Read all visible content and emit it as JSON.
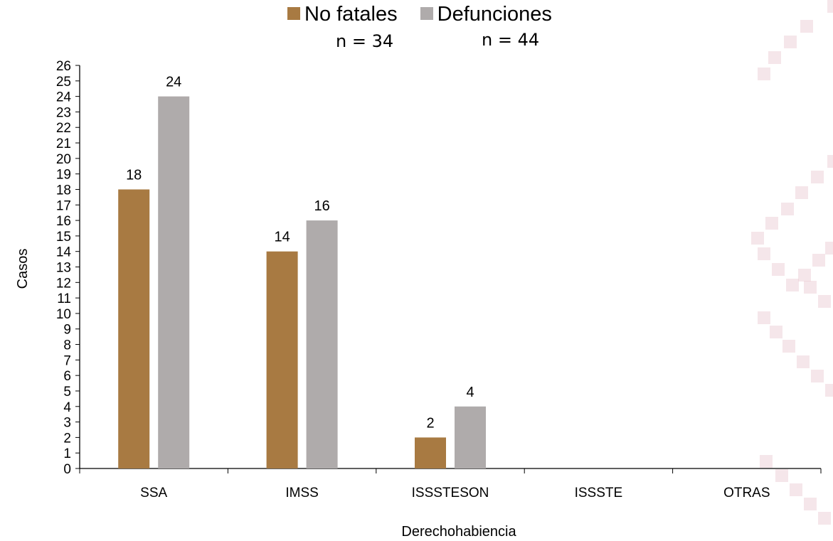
{
  "colors": {
    "no_fatales": "#A87A42",
    "defunciones": "#AFABAB",
    "axis": "#000000",
    "deco": "#E8C8D0"
  },
  "legend": {
    "no_fatales": "No fatales",
    "defunciones": "Defunciones"
  },
  "n_labels": {
    "no_fatales": "n = 34",
    "defunciones": "n = 44"
  },
  "chart_data": {
    "type": "bar",
    "xlabel": "Derechohabiencia",
    "ylabel": "Casos",
    "ylim": [
      0,
      26
    ],
    "yticks": [
      0,
      1,
      2,
      3,
      4,
      5,
      6,
      7,
      8,
      9,
      10,
      11,
      12,
      13,
      14,
      15,
      16,
      17,
      18,
      19,
      20,
      21,
      22,
      23,
      24,
      25,
      26
    ],
    "categories": [
      "SSA",
      "IMSS",
      "ISSSTESON",
      "ISSSTE",
      "OTRAS"
    ],
    "series": [
      {
        "name": "No fatales",
        "values": [
          18,
          14,
          2,
          0,
          0
        ]
      },
      {
        "name": "Defunciones",
        "values": [
          24,
          16,
          4,
          0,
          0
        ]
      }
    ],
    "grid": false,
    "legend_position": "top-center"
  }
}
